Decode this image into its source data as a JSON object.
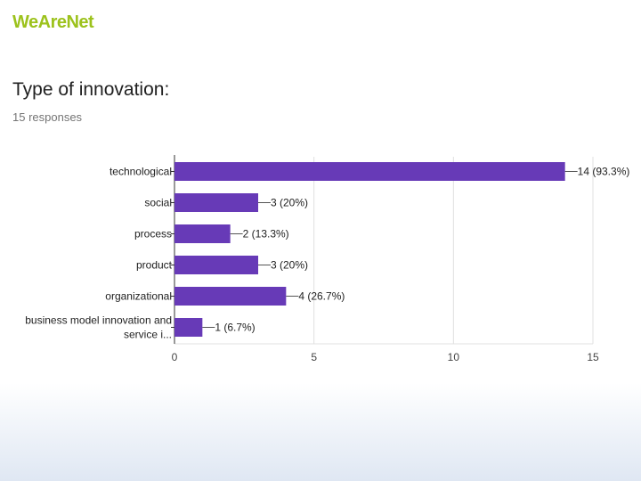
{
  "brand": {
    "name": "WeAreNet",
    "color": "#9cc21c"
  },
  "question": {
    "title": "Type of innovation:",
    "responses": "15 responses"
  },
  "colors": {
    "bar": "#673ab7",
    "grid": "#e0e0e0",
    "axis": "#9e9e9e",
    "label": "#212121"
  },
  "chart_data": {
    "type": "bar",
    "orientation": "horizontal",
    "categories": [
      [
        "technological"
      ],
      [
        "social"
      ],
      [
        "process"
      ],
      [
        "product"
      ],
      [
        "organizational"
      ],
      [
        "business model innovation and",
        "service i..."
      ]
    ],
    "values": [
      14,
      3,
      2,
      3,
      4,
      1
    ],
    "data_labels": [
      "14 (93.3%)",
      "3 (20%)",
      "2 (13.3%)",
      "3 (20%)",
      "4 (26.7%)",
      "1 (6.7%)"
    ],
    "xlim": [
      0,
      15
    ],
    "xticks": [
      "0",
      "5",
      "10",
      "15"
    ],
    "grid": true,
    "title": "",
    "xlabel": "",
    "ylabel": ""
  }
}
